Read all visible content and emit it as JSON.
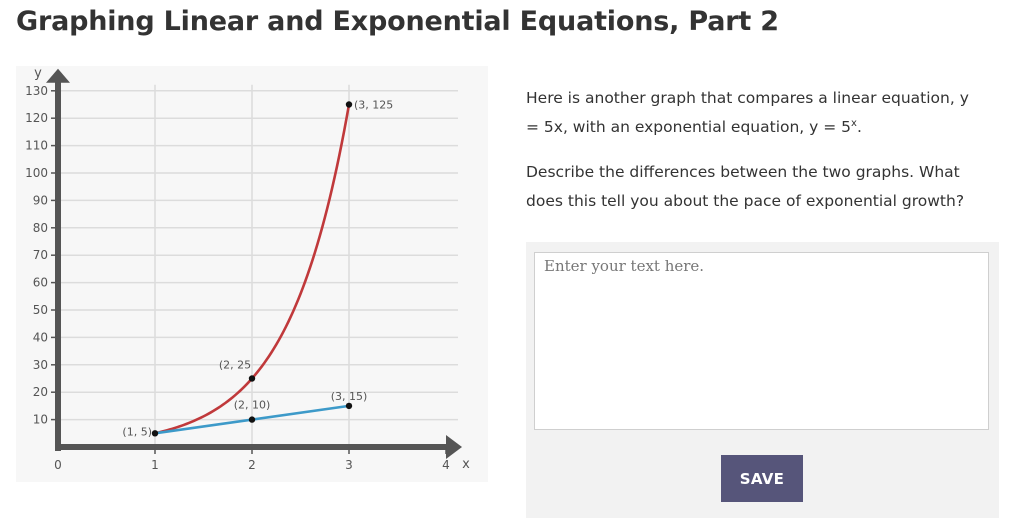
{
  "page": {
    "title": "Graphing Linear and Exponential Equations, Part 2"
  },
  "prompt": {
    "paragraph1_a": "Here is another graph that compares a linear equation, y = 5x, with an exponential equation, y = 5",
    "paragraph1_sup": "x",
    "paragraph1_b": ".",
    "paragraph2": "Describe the differences between the two graphs. What does this tell you about the pace of exponential growth?"
  },
  "response": {
    "placeholder": "Enter your text here.",
    "value": "",
    "save_label": "SAVE"
  },
  "colors": {
    "exponential": "#c0393b",
    "linear": "#3d9ac9",
    "axis": "#555555",
    "button": "#56557a"
  },
  "chart_data": {
    "type": "line",
    "xlabel": "x",
    "ylabel": "y",
    "xlim": [
      0,
      4
    ],
    "ylim": [
      0,
      130
    ],
    "x_ticks": [
      "0",
      "1",
      "2",
      "3",
      "4"
    ],
    "y_ticks": [
      "10",
      "20",
      "30",
      "40",
      "50",
      "60",
      "70",
      "80",
      "90",
      "100",
      "110",
      "120",
      "130"
    ],
    "grid": true,
    "series": [
      {
        "curve": "exponential",
        "x": [
          1,
          2,
          3
        ],
        "y": [
          5,
          25,
          125
        ],
        "color": "#c0393b"
      },
      {
        "curve": "linear",
        "x": [
          1,
          2,
          3
        ],
        "y": [
          5,
          10,
          15
        ],
        "color": "#3d9ac9"
      }
    ],
    "annotations": [
      {
        "x": 1,
        "y": 5,
        "text": "(1, 5)"
      },
      {
        "x": 2,
        "y": 10,
        "text": "(2, 10)"
      },
      {
        "x": 3,
        "y": 15,
        "text": "(3, 15)"
      },
      {
        "x": 2,
        "y": 25,
        "text": "(2, 25"
      },
      {
        "x": 3,
        "y": 125,
        "text": "(3, 125"
      }
    ]
  }
}
